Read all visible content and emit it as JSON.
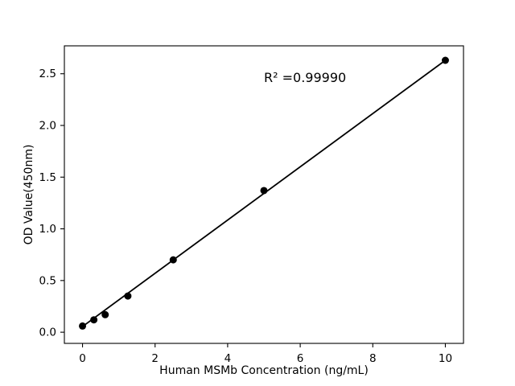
{
  "figure": {
    "background": "#ffffff",
    "foreground": "#000000"
  },
  "chart_data": {
    "type": "scatter",
    "title": "",
    "xlabel": "Human MSMb Concentration (ng/mL)",
    "ylabel": "OD Value(450nm)",
    "x": [
      0,
      0.3125,
      0.625,
      1.25,
      2.5,
      5,
      10
    ],
    "y": [
      0.06,
      0.12,
      0.17,
      0.35,
      0.7,
      1.37,
      2.63
    ],
    "fit_line": {
      "x": [
        0,
        10
      ],
      "y": [
        0.055,
        2.63
      ]
    },
    "annotation": {
      "text": "R² =0.99990",
      "x": 5.0,
      "y": 2.42
    },
    "xlim": [
      -0.5,
      10.5
    ],
    "ylim": [
      -0.108,
      2.77
    ],
    "x_ticks": [
      0,
      2,
      4,
      6,
      8,
      10
    ],
    "x_tick_labels": [
      "0",
      "2",
      "4",
      "6",
      "8",
      "10"
    ],
    "y_ticks": [
      0.0,
      0.5,
      1.0,
      1.5,
      2.0,
      2.5
    ],
    "y_tick_labels": [
      "0.0",
      "0.5",
      "1.0",
      "1.5",
      "2.0",
      "2.5"
    ],
    "grid": false,
    "legend": null,
    "marker_color": "#000000",
    "line_color": "#000000",
    "marker_radius": 4.5
  }
}
